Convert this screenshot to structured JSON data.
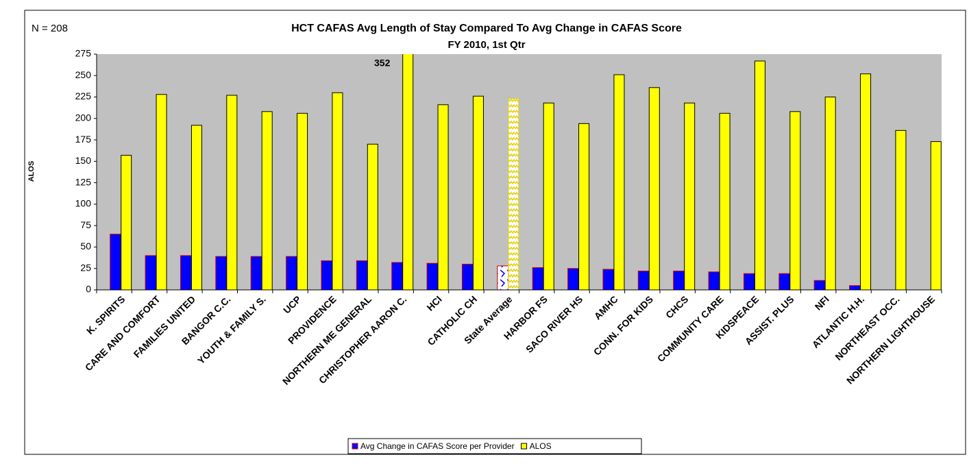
{
  "chart_data": {
    "type": "bar",
    "title": "HCT CAFAS Avg Length of Stay Compared To Avg Change in CAFAS Score",
    "subtitle": "FY 2010, 1st Qtr",
    "note": "N = 208",
    "y_label": "ALOS",
    "categories": [
      "K. SPIRITS",
      "CARE AND COMFORT",
      "FAMILIES UNITED",
      "BANGOR C.C.",
      "YOUTH & FAMILY S.",
      "UCP",
      "PROVIDENCE",
      "NORTHERN ME GENERAL",
      "CHRISTOPHER AARON C.",
      "HCI",
      "CATHOLIC CH",
      "State Average",
      "HARBOR FS",
      "SACO RIVER HS",
      "AMHC",
      "CONN. FOR KIDS",
      "CHCS",
      "COMMUNITY CARE",
      "KIDSPEACE",
      "ASSIST. PLUS",
      "NFI",
      "ATLANTIC H.H.",
      "NORTHEAST OCC.",
      "NORTHERN LIGHTHOUSE"
    ],
    "series": [
      {
        "name": "Avg Change in CAFAS Score per Provider",
        "color": "#0000ff",
        "border": "#cc0000",
        "values": [
          65,
          40,
          40,
          39,
          39,
          39,
          34,
          34,
          32,
          31,
          30,
          28,
          26,
          25,
          24,
          22,
          22,
          21,
          19,
          19,
          11,
          5,
          null,
          null
        ]
      },
      {
        "name": "ALOS",
        "color": "#ffff00",
        "border": "#000000",
        "values": [
          157,
          228,
          192,
          227,
          208,
          206,
          230,
          170,
          352,
          216,
          226,
          223,
          218,
          194,
          251,
          236,
          218,
          206,
          267,
          208,
          225,
          252,
          186,
          173
        ],
        "value_labels": [
          null,
          null,
          null,
          null,
          null,
          null,
          null,
          null,
          "352",
          null,
          null,
          null,
          null,
          null,
          null,
          null,
          null,
          null,
          null,
          null,
          null,
          null,
          null,
          null
        ]
      }
    ],
    "pattern_category": 11,
    "ylim": [
      0,
      275
    ],
    "yticks": [
      0,
      25,
      50,
      75,
      100,
      125,
      150,
      175,
      200,
      225,
      250,
      275
    ],
    "grid": false,
    "legend": "bottom"
  }
}
